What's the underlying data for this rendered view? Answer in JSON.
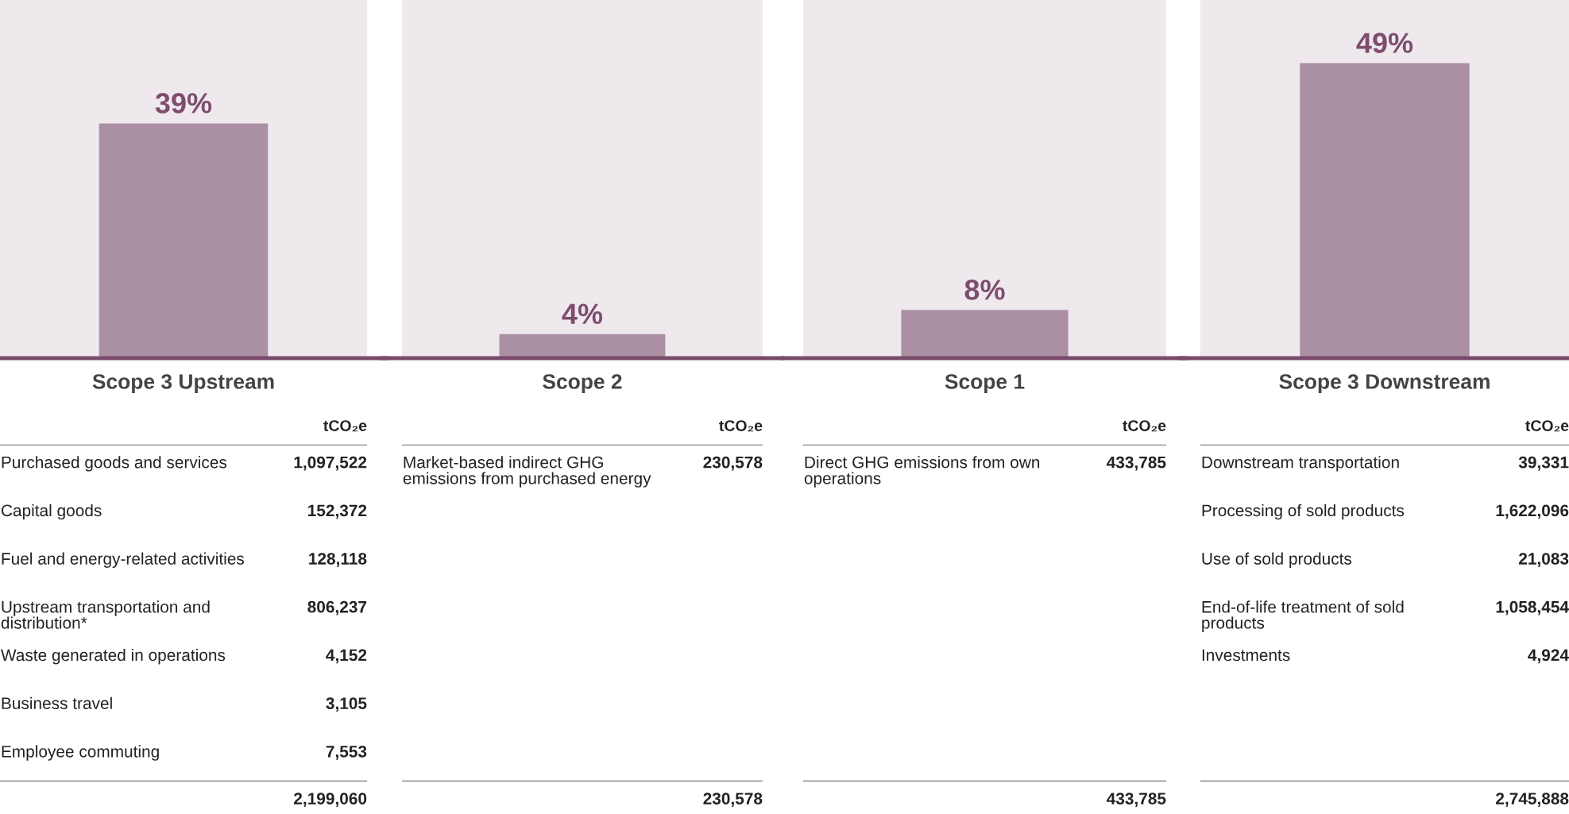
{
  "chart_data": [
    {
      "type": "bar",
      "categories": [
        "Scope 3 Upstream"
      ],
      "values": [
        39
      ],
      "value_labels": [
        "39%"
      ],
      "color": "#ab8fa3",
      "ylim": [
        0,
        59.5
      ],
      "tick_labels": "x",
      "grid": false
    },
    {
      "type": "bar",
      "categories": [
        "Scope 2"
      ],
      "values": [
        4
      ],
      "value_labels": [
        "4%"
      ],
      "color": "#ab8fa3",
      "ylim": [
        0,
        59.5
      ],
      "tick_labels": "x",
      "grid": false
    },
    {
      "type": "bar",
      "categories": [
        "Scope 1"
      ],
      "values": [
        8
      ],
      "value_labels": [
        "8%"
      ],
      "color": "#ab8fa3",
      "ylim": [
        0,
        59.5
      ],
      "tick_labels": "x",
      "grid": false
    },
    {
      "type": "bar",
      "categories": [
        "Scope 3 Downstream"
      ],
      "values": [
        49
      ],
      "value_labels": [
        "49%"
      ],
      "color": "#ab8fa3",
      "ylim": [
        0,
        59.5
      ],
      "tick_labels": "x",
      "grid": false
    },
    {
      "type": "other",
      "subtitle": "tCO₂e",
      "categories": [
        "Purchased goods and services",
        "Capital goods",
        "Fuel and energy-related activities",
        "Upstream transportation and\ndistribution*",
        "Waste generated in operations",
        "Business travel",
        "Employee commuting"
      ],
      "value_labels": [
        "1,097,522",
        "152,372",
        "128,118",
        "806,237",
        "4,152",
        "3,105",
        "7,553"
      ],
      "totals": [
        "2,199,060"
      ]
    },
    {
      "type": "other",
      "subtitle": "tCO₂e",
      "categories": [
        "Market-based indirect GHG\nemissions from purchased energy"
      ],
      "value_labels": [
        "230,578"
      ],
      "totals": [
        "230,578"
      ]
    },
    {
      "type": "other",
      "subtitle": "tCO₂e",
      "categories": [
        "Direct GHG emissions from own\noperations"
      ],
      "value_labels": [
        "433,785"
      ],
      "totals": [
        "433,785"
      ]
    },
    {
      "type": "other",
      "subtitle": "tCO₂e",
      "categories": [
        "Downstream transportation",
        "Processing of sold products",
        "Use of sold products",
        "End-of-life treatment of sold\nproducts",
        "Investments"
      ],
      "value_labels": [
        "39,331",
        "1,622,096",
        "21,083",
        "1,058,454",
        "4,924"
      ],
      "totals": [
        "2,745,888"
      ]
    }
  ]
}
